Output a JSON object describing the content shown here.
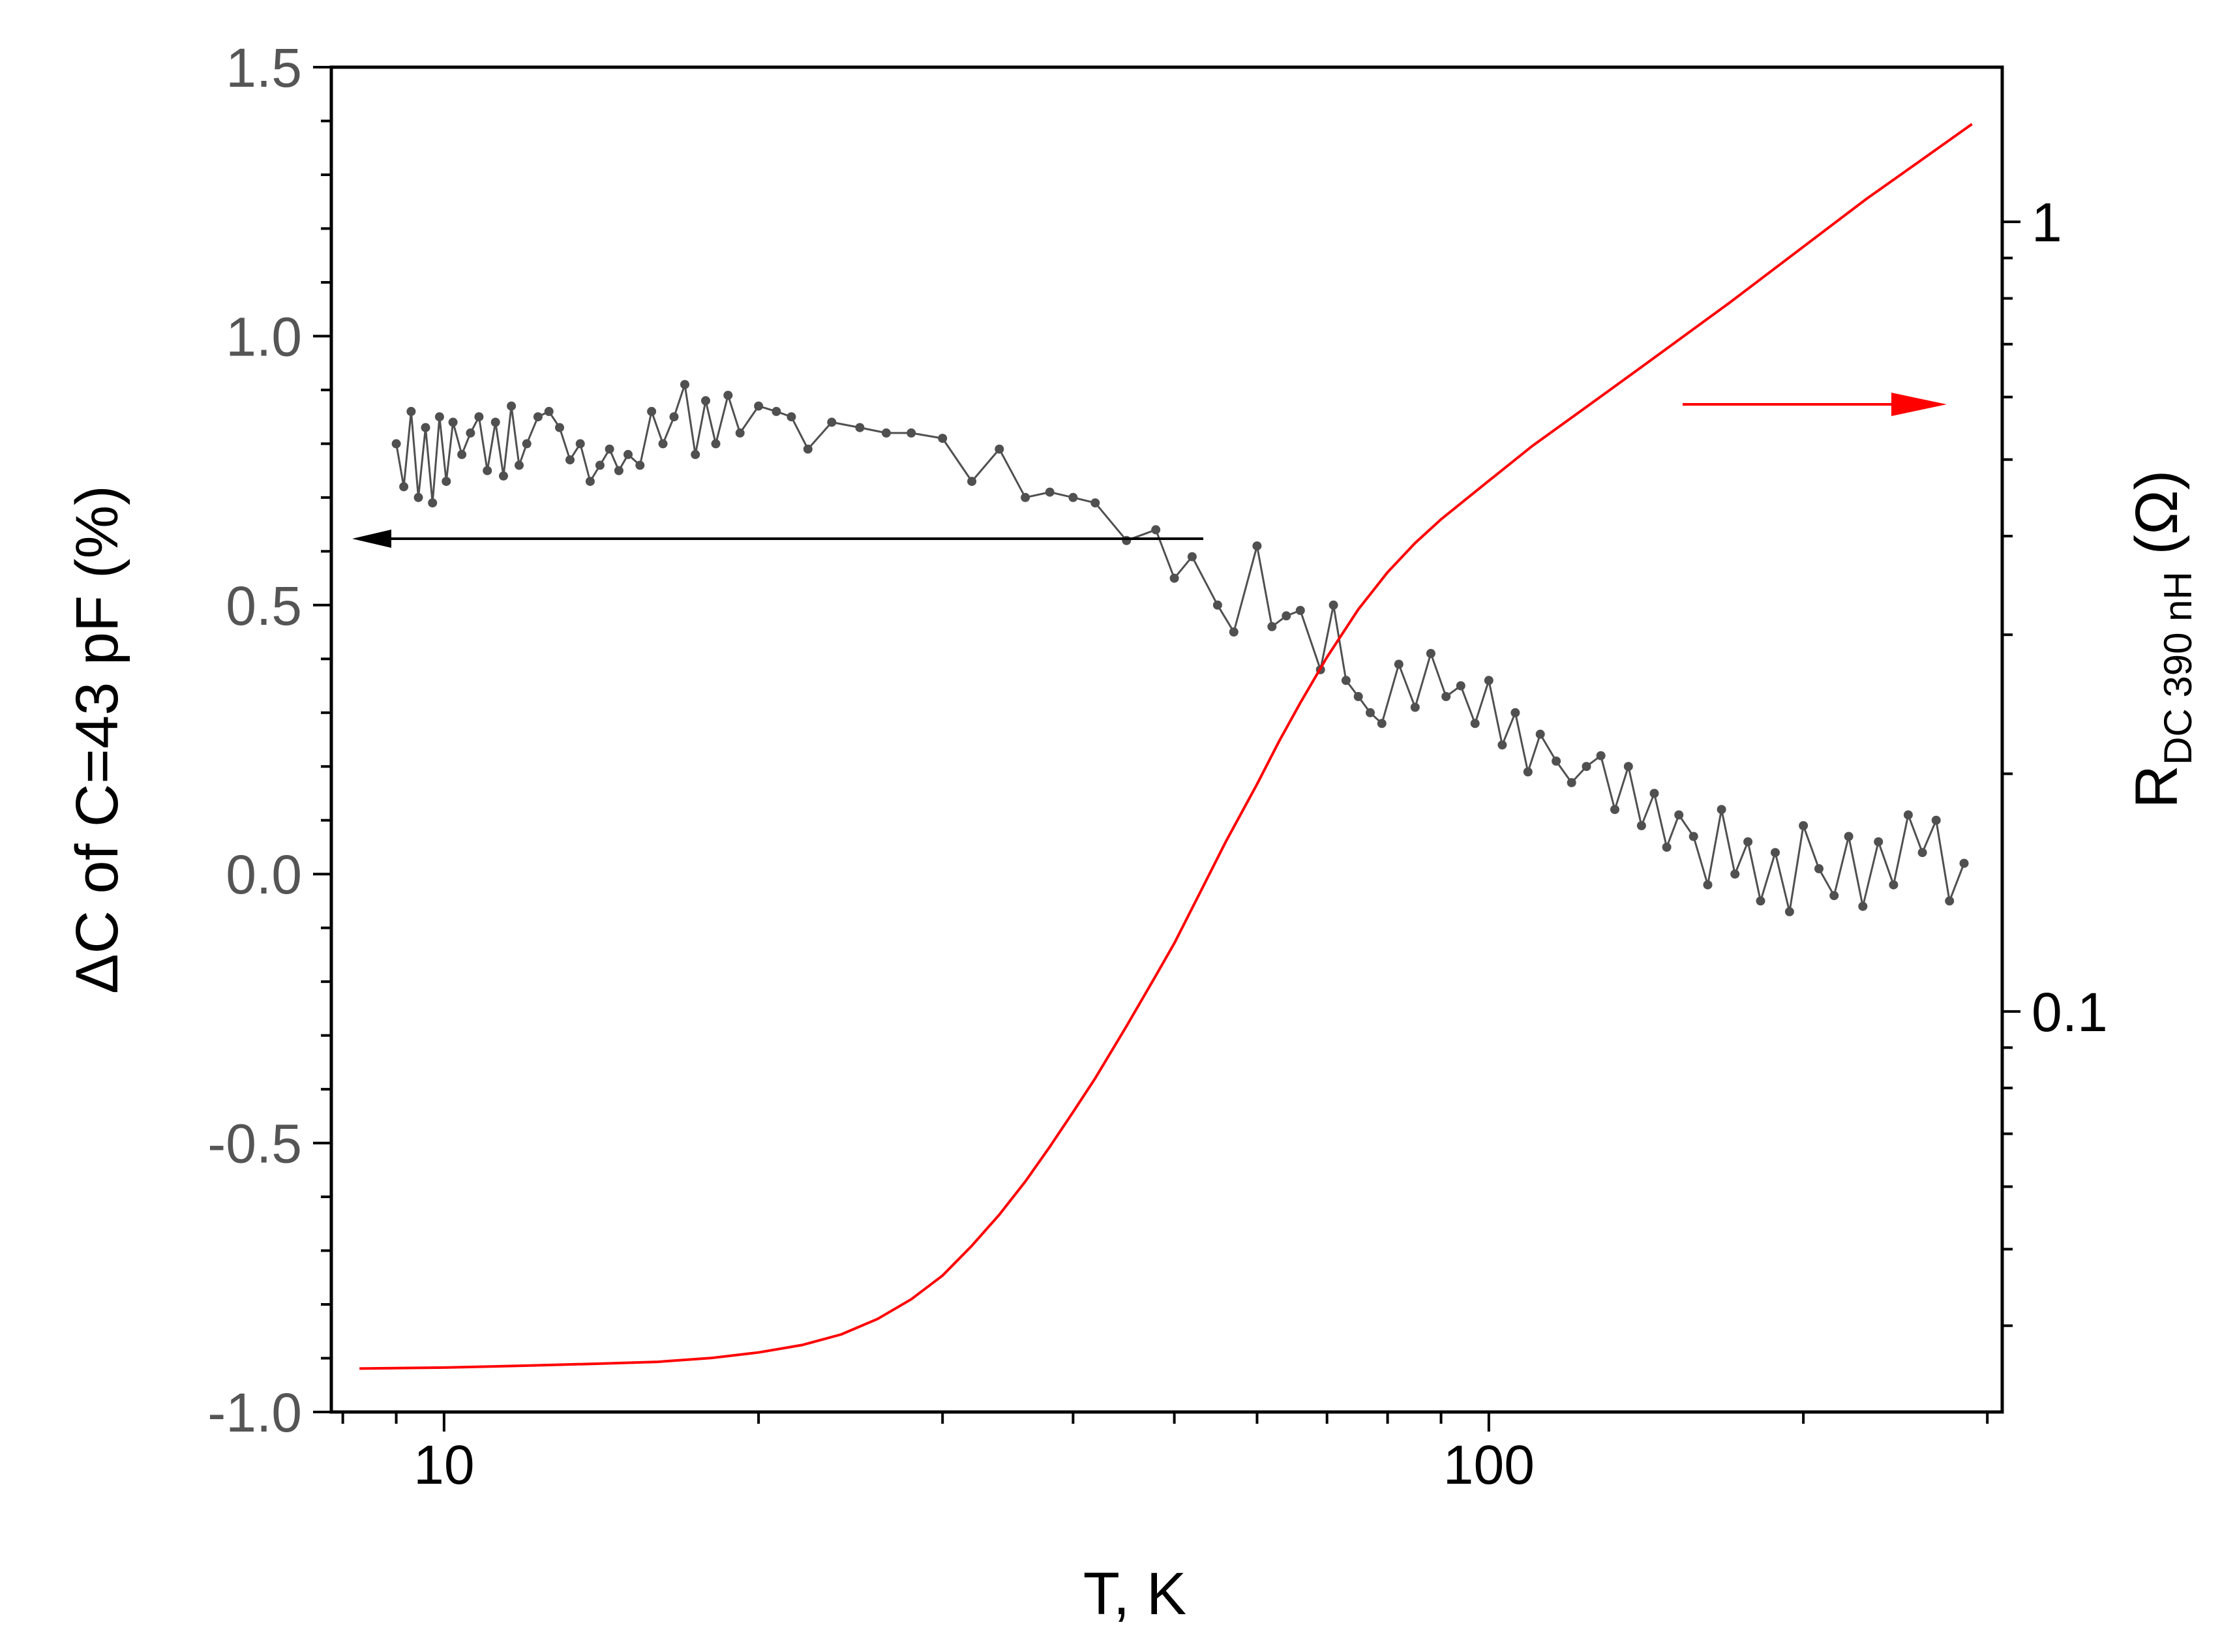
{
  "chart_data": {
    "type": "line",
    "title": "",
    "xlabel": "T, K",
    "x_scale": "log",
    "xlim": [
      7.8,
      310
    ],
    "x_ticks": [
      10,
      100
    ],
    "x_tick_labels": [
      "10",
      "100"
    ],
    "ylabel_left": "ΔC of C=43 pF   (%)",
    "ylim_left": [
      -1.0,
      1.5
    ],
    "y_left_ticks": [
      -1.0,
      -0.5,
      0.0,
      0.5,
      1.0,
      1.5
    ],
    "y_left_tick_labels": [
      "-1.0",
      "-0.5",
      "0.0",
      "0.5",
      "1.0",
      "1.5"
    ],
    "ylabel_right": {
      "main": "R",
      "subscript": "DC 390 nH",
      "unit": " (Ω)"
    },
    "y_right_scale": "log",
    "ylim_right": [
      0.0311,
      1.57
    ],
    "y_right_ticks": [
      0.1,
      1
    ],
    "y_right_tick_labels": [
      "0.1",
      "1"
    ],
    "colors": {
      "capacitance": "#505050",
      "resistance": "#ff0000",
      "axis": "#000000",
      "tick_text": "#555555"
    },
    "series": [
      {
        "name": "ΔC (%)",
        "axis": "left",
        "marker": "circle",
        "x": [
          9.0,
          9.15,
          9.3,
          9.45,
          9.6,
          9.75,
          9.9,
          10.05,
          10.2,
          10.4,
          10.6,
          10.8,
          11.0,
          11.2,
          11.4,
          11.6,
          11.8,
          12.0,
          12.3,
          12.6,
          12.9,
          13.2,
          13.5,
          13.8,
          14.1,
          14.4,
          14.7,
          15.0,
          15.4,
          15.8,
          16.2,
          16.6,
          17.0,
          17.4,
          17.8,
          18.2,
          18.7,
          19.2,
          20.0,
          20.8,
          21.5,
          22.3,
          23.5,
          25.0,
          26.5,
          28.0,
          30.0,
          32.0,
          34.0,
          36.0,
          38.0,
          40.0,
          42.0,
          45.0,
          48.0,
          50.0,
          52.0,
          55.0,
          57.0,
          60.0,
          62.0,
          64.0,
          66.0,
          69.0,
          71.0,
          73.0,
          75.0,
          77.0,
          79.0,
          82.0,
          85.0,
          88.0,
          91.0,
          94.0,
          97.0,
          100.0,
          103.0,
          106.0,
          109.0,
          112.0,
          116.0,
          120.0,
          124.0,
          128.0,
          132.0,
          136.0,
          140.0,
          144.0,
          148.0,
          152.0,
          157.0,
          162.0,
          167.0,
          172.0,
          177.0,
          182.0,
          188.0,
          194.0,
          200.0,
          207.0,
          214.0,
          221.0,
          228.0,
          236.0,
          244.0,
          252.0,
          260.0,
          268.0,
          276.0,
          285.0
        ],
        "y": [
          0.8,
          0.72,
          0.86,
          0.7,
          0.83,
          0.69,
          0.85,
          0.73,
          0.84,
          0.78,
          0.82,
          0.85,
          0.75,
          0.84,
          0.74,
          0.87,
          0.76,
          0.8,
          0.85,
          0.86,
          0.83,
          0.77,
          0.8,
          0.73,
          0.76,
          0.79,
          0.75,
          0.78,
          0.76,
          0.86,
          0.8,
          0.85,
          0.91,
          0.78,
          0.88,
          0.8,
          0.89,
          0.82,
          0.87,
          0.86,
          0.85,
          0.79,
          0.84,
          0.83,
          0.82,
          0.82,
          0.81,
          0.73,
          0.79,
          0.7,
          0.71,
          0.7,
          0.69,
          0.62,
          0.64,
          0.55,
          0.59,
          0.5,
          0.45,
          0.61,
          0.46,
          0.48,
          0.49,
          0.38,
          0.5,
          0.36,
          0.33,
          0.3,
          0.28,
          0.39,
          0.31,
          0.41,
          0.33,
          0.35,
          0.28,
          0.36,
          0.24,
          0.3,
          0.19,
          0.26,
          0.21,
          0.17,
          0.2,
          0.22,
          0.12,
          0.2,
          0.09,
          0.15,
          0.05,
          0.11,
          0.07,
          -0.02,
          0.12,
          0.0,
          0.06,
          -0.05,
          0.04,
          -0.07,
          0.09,
          0.01,
          -0.04,
          0.07,
          -0.06,
          0.06,
          -0.02,
          0.11,
          0.04,
          0.1,
          -0.05,
          0.02
        ]
      },
      {
        "name": "R_DC 390 nH (Ω)",
        "axis": "right",
        "marker": "none",
        "x": [
          8.3,
          10,
          12,
          14,
          16,
          18,
          20,
          22,
          24,
          26,
          28,
          30,
          32,
          34,
          36,
          38,
          40,
          42,
          45,
          48,
          50,
          53,
          56,
          60,
          63,
          66,
          70,
          75,
          80,
          85,
          90,
          100,
          110,
          120,
          130,
          140,
          150,
          170,
          200,
          230,
          260,
          290
        ],
        "y": [
          0.0353,
          0.0354,
          0.0356,
          0.0358,
          0.036,
          0.0364,
          0.037,
          0.0378,
          0.039,
          0.0408,
          0.0432,
          0.0463,
          0.0505,
          0.0553,
          0.0609,
          0.0674,
          0.0746,
          0.0823,
          0.0958,
          0.111,
          0.122,
          0.142,
          0.164,
          0.194,
          0.22,
          0.246,
          0.281,
          0.323,
          0.36,
          0.392,
          0.42,
          0.47,
          0.52,
          0.565,
          0.61,
          0.655,
          0.7,
          0.79,
          0.93,
          1.07,
          1.2,
          1.33
        ]
      }
    ],
    "annotations": [
      {
        "name": "arrow-left",
        "text": "",
        "points_to": "left axis",
        "color": "#000000"
      },
      {
        "name": "arrow-right",
        "text": "",
        "points_to": "right axis",
        "color": "#ff0000"
      }
    ]
  }
}
